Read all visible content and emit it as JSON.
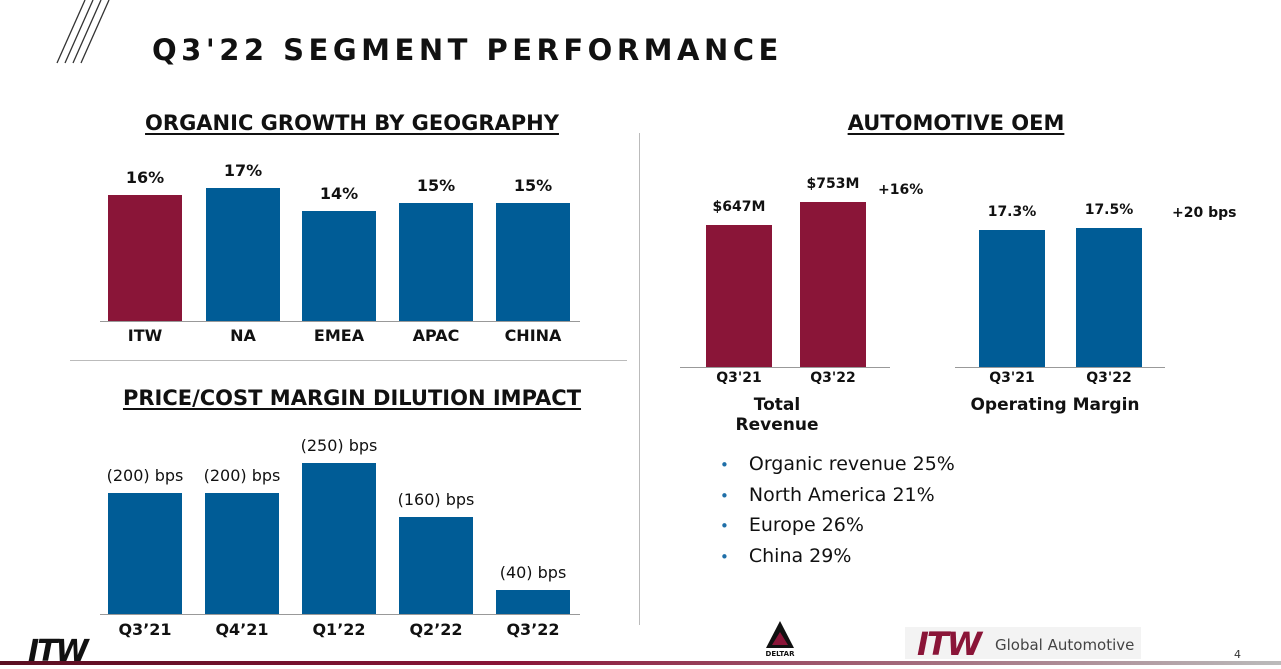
{
  "title": "Q3'22 SEGMENT PERFORMANCE",
  "colors": {
    "itw_maroon": "#8a1538",
    "blue": "#005c96"
  },
  "page_number": "4",
  "logos": {
    "itw": "ITW",
    "deltar": "DELTAR",
    "footer_brand": "Global Automotive"
  },
  "chart_data": [
    {
      "type": "bar",
      "title": "ORGANIC GROWTH BY GEOGRAPHY",
      "categories": [
        "ITW",
        "NA",
        "EMEA",
        "APAC",
        "CHINA"
      ],
      "values": [
        16,
        17,
        14,
        15,
        15
      ],
      "labels": [
        "16%",
        "17%",
        "14%",
        "15%",
        "15%"
      ],
      "colors": [
        "#8a1538",
        "#005c96",
        "#005c96",
        "#005c96",
        "#005c96"
      ],
      "unit": "%"
    },
    {
      "type": "bar",
      "title": "PRICE/COST MARGIN DILUTION IMPACT",
      "categories": [
        "Q3’21",
        "Q4’21",
        "Q1’22",
        "Q2’22",
        "Q3’22"
      ],
      "values": [
        -200,
        -200,
        -250,
        -160,
        -40
      ],
      "labels": [
        "(200) bps",
        "(200) bps",
        "(250) bps",
        "(160) bps",
        "(40) bps"
      ],
      "unit": "bps"
    },
    {
      "type": "bar",
      "section_title": "AUTOMOTIVE OEM",
      "title": "Total Revenue",
      "categories": [
        "Q3'21",
        "Q3'22"
      ],
      "values": [
        647,
        753
      ],
      "labels": [
        "$647M",
        "$753M"
      ],
      "unit": "$M",
      "change": "+16%"
    },
    {
      "type": "bar",
      "title": "Operating Margin",
      "categories": [
        "Q3'21",
        "Q3'22"
      ],
      "values": [
        17.3,
        17.5
      ],
      "labels": [
        "17.3%",
        "17.5%"
      ],
      "unit": "%",
      "change": "+20 bps"
    }
  ],
  "bullets": [
    "Organic revenue 25%",
    "North America 21%",
    "Europe 26%",
    "China 29%"
  ]
}
